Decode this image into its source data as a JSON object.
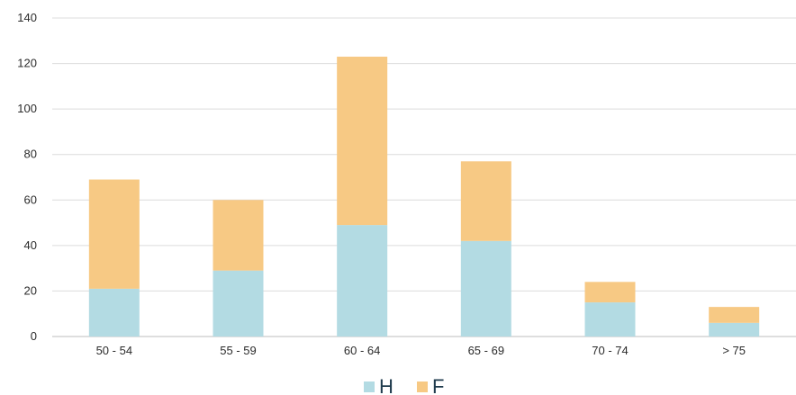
{
  "chart_data": {
    "type": "bar",
    "stacked": true,
    "title": "",
    "xlabel": "",
    "ylabel": "",
    "categories": [
      "50 - 54",
      "55 - 59",
      "60 - 64",
      "65 - 69",
      "70 - 74",
      "> 75"
    ],
    "series": [
      {
        "name": "H",
        "color": "#b3dbe3",
        "values": [
          21,
          29,
          49,
          42,
          15,
          6
        ]
      },
      {
        "name": "F",
        "color": "#f7c984",
        "values": [
          48,
          31,
          74,
          35,
          9,
          7
        ]
      }
    ],
    "ylim": [
      0,
      140
    ],
    "yticks": [
      0,
      20,
      40,
      60,
      80,
      100,
      120,
      140
    ],
    "grid": true,
    "legend_position": "bottom-center"
  }
}
